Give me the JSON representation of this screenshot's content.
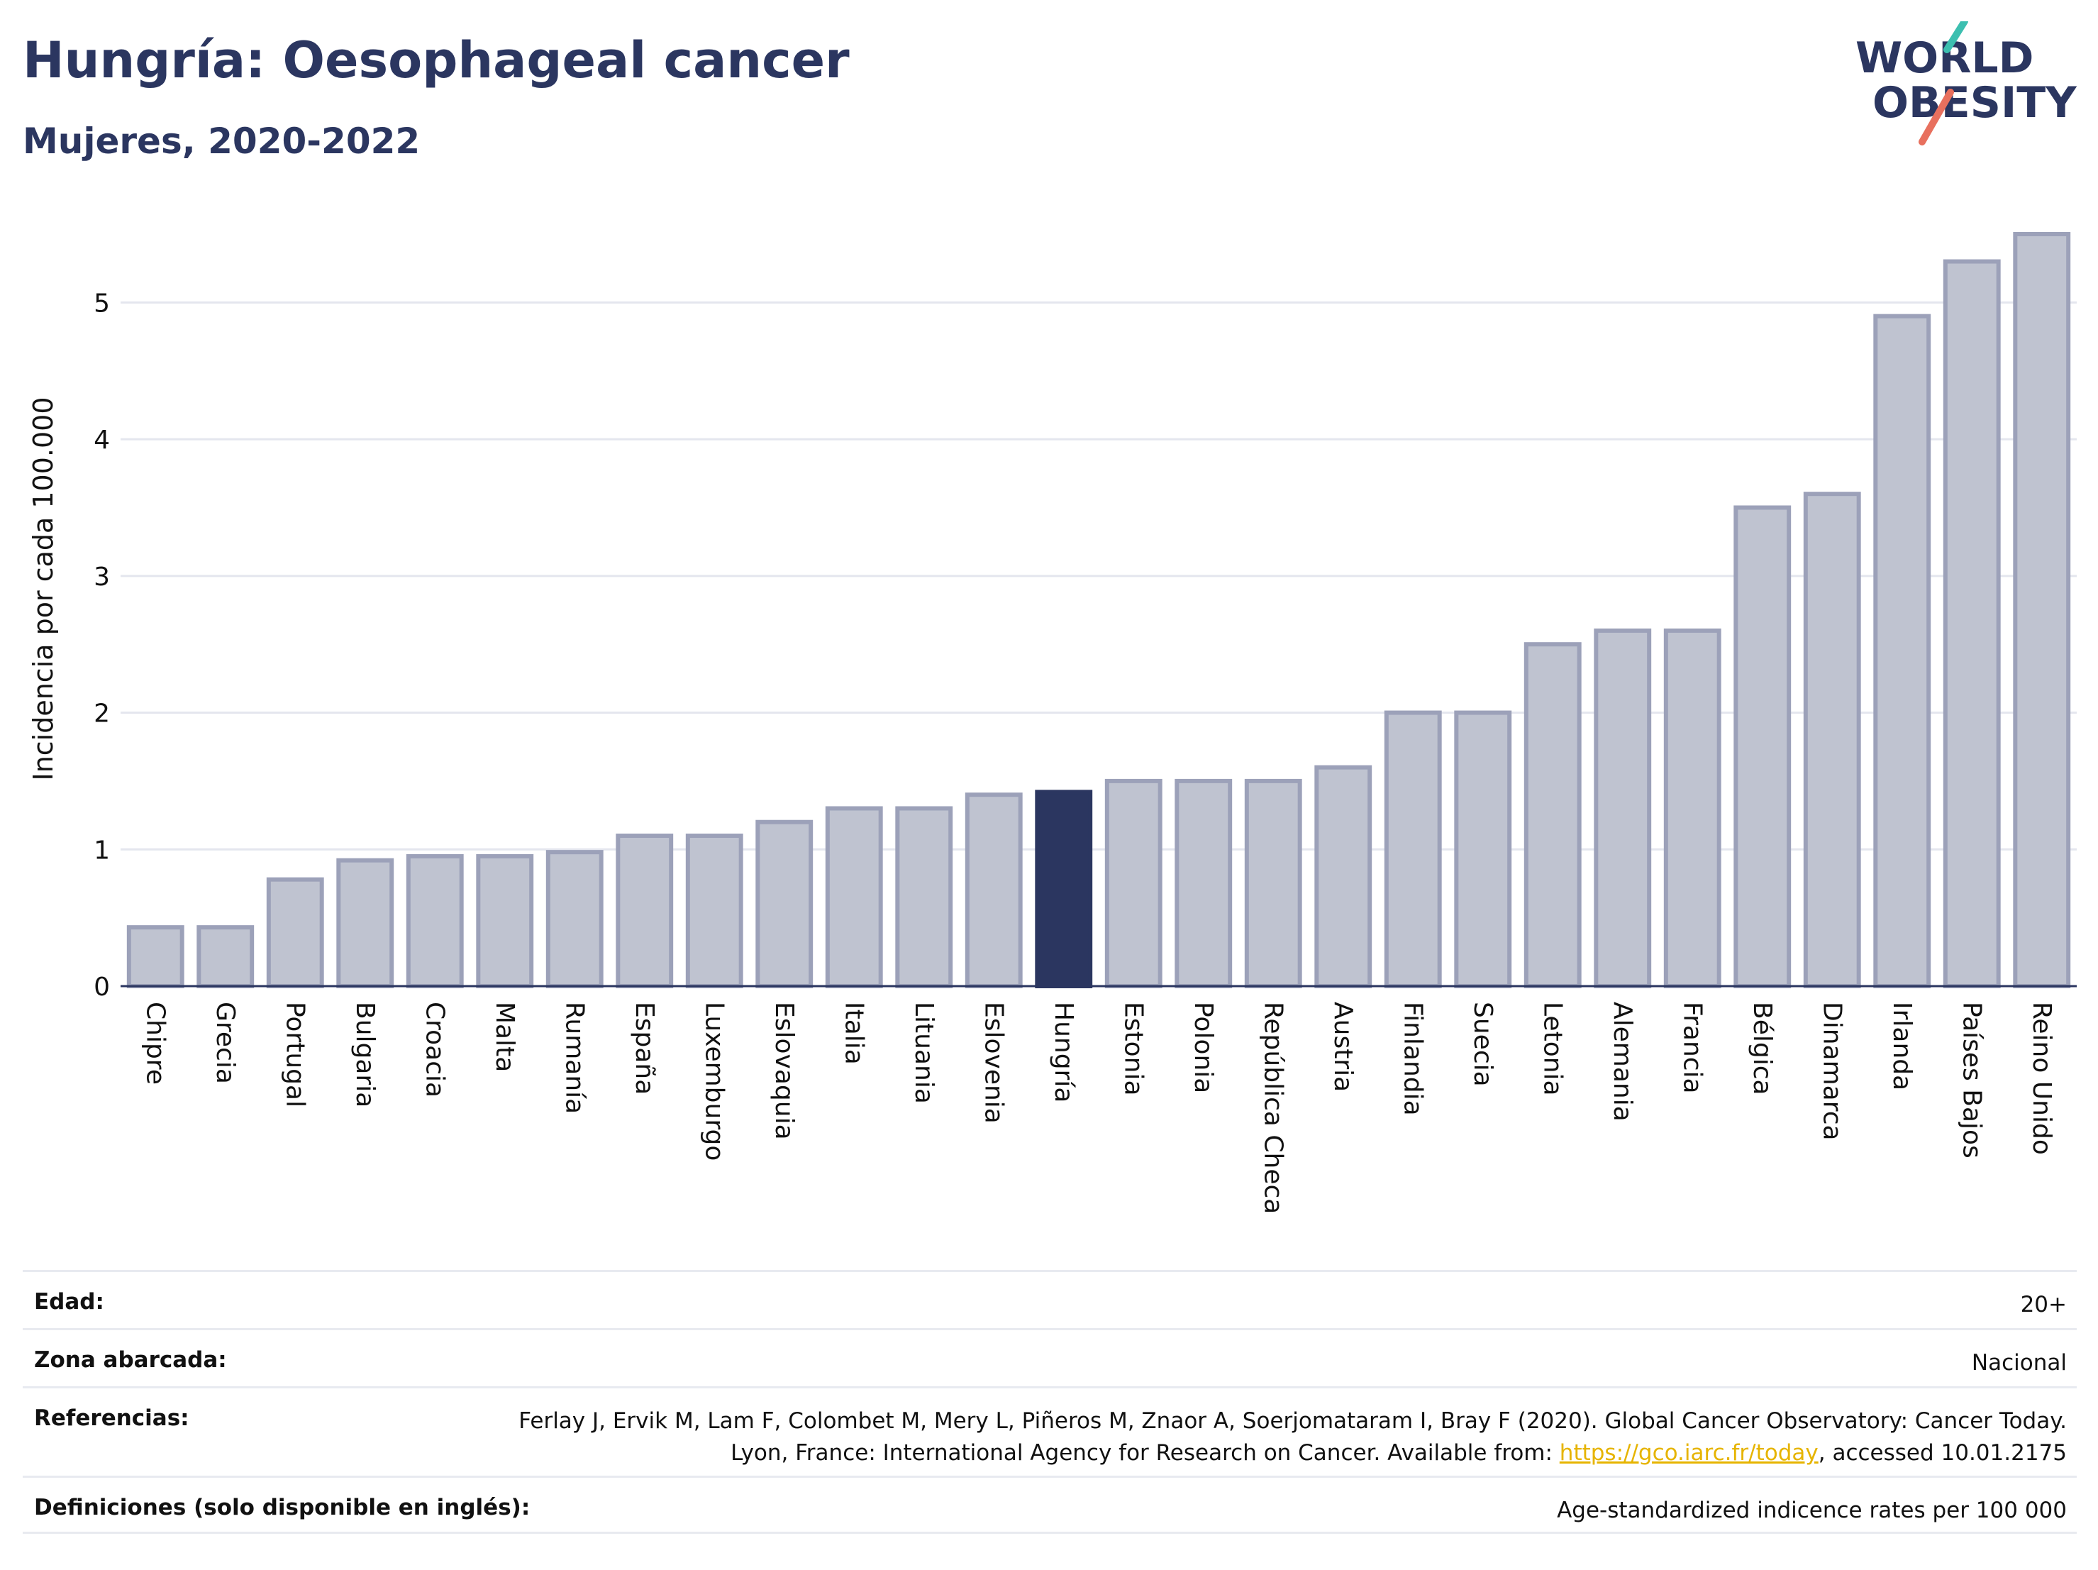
{
  "header": {
    "title": "Hungría: Oesophageal cancer",
    "subtitle": "Mujeres, 2020-2022"
  },
  "logo": {
    "line1": "WORLD",
    "line2": "OBESITY"
  },
  "colors": {
    "bar": "#bfc3d0",
    "bar_stroke": "#9ca1b9",
    "highlight": "#2b3660",
    "title": "#2b3660",
    "link": "#e6b400",
    "logo_teal": "#3cbfb0",
    "logo_coral": "#e8705e"
  },
  "chart_data": {
    "type": "bar",
    "ylabel": "Incidencia por cada 100.000",
    "ylim": [
      0,
      5.6
    ],
    "yticks": [
      0,
      1,
      2,
      3,
      4,
      5
    ],
    "grid": true,
    "highlight": "Hungría",
    "categories": [
      "Chipre",
      "Grecia",
      "Portugal",
      "Bulgaria",
      "Croacia",
      "Malta",
      "Rumanía",
      "España",
      "Luxemburgo",
      "Eslovaquia",
      "Italia",
      "Lituania",
      "Eslovenia",
      "Hungría",
      "Estonia",
      "Polonia",
      "República Checa",
      "Austria",
      "Finlandia",
      "Suecia",
      "Letonia",
      "Alemania",
      "Francia",
      "Bélgica",
      "Dinamarca",
      "Irlanda",
      "Países Bajos",
      "Reino Unido"
    ],
    "values": [
      0.43,
      0.43,
      0.78,
      0.92,
      0.95,
      0.95,
      0.98,
      1.1,
      1.1,
      1.2,
      1.3,
      1.3,
      1.4,
      1.42,
      1.5,
      1.5,
      1.5,
      1.6,
      2.0,
      2.0,
      2.5,
      2.6,
      2.6,
      3.5,
      3.6,
      4.9,
      5.3,
      5.5
    ]
  },
  "info": {
    "rows": [
      {
        "label": "Edad:",
        "value": "20+"
      },
      {
        "label": "Zona abarcada:",
        "value": "Nacional"
      },
      {
        "label": "Referencias:",
        "value_before": "Ferlay J, Ervik M, Lam F, Colombet M, Mery L, Piñeros M, Znaor A, Soerjomataram I, Bray F (2020). Global Cancer Observatory: Cancer Today. Lyon, France: International Agency for Research on Cancer. Available from: ",
        "link": "https://gco.iarc.fr/today",
        "value_after": ", accessed 10.01.2175"
      },
      {
        "label": "Definiciones (solo disponible en inglés):",
        "value": "Age-standardized indicence rates per 100 000"
      }
    ]
  }
}
